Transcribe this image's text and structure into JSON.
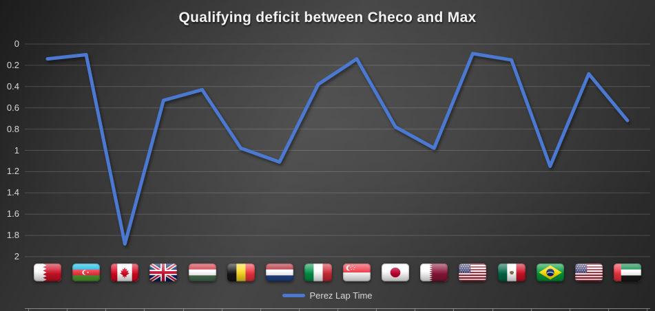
{
  "chart": {
    "title": "Qualifying deficit between Checo and Max",
    "colors": {
      "line": "#4B79D1",
      "title_text": "#F2F2F2",
      "axis_text": "#D9D9D9",
      "background_dark": "#262626",
      "background_mid": "#464646"
    }
  },
  "chart_data": {
    "type": "line",
    "title": "Qualifying deficit between Checo and Max",
    "xlabel": "",
    "ylabel": "",
    "grid": true,
    "legend_position": "bottom",
    "x_axis": {
      "label_type": "country-flag-icons"
    },
    "categories": [
      {
        "label": "Bahrain",
        "flag": "bahrain"
      },
      {
        "label": "Azerbaijan",
        "flag": "azerbaijan"
      },
      {
        "label": "Canada",
        "flag": "canada"
      },
      {
        "label": "Great Britain",
        "flag": "uk"
      },
      {
        "label": "Hungary",
        "flag": "hungary"
      },
      {
        "label": "Belgium",
        "flag": "belgium"
      },
      {
        "label": "Netherlands",
        "flag": "netherlands"
      },
      {
        "label": "Italy",
        "flag": "italy"
      },
      {
        "label": "Singapore",
        "flag": "singapore"
      },
      {
        "label": "Japan",
        "flag": "japan"
      },
      {
        "label": "Qatar",
        "flag": "qatar"
      },
      {
        "label": "United States",
        "flag": "usa"
      },
      {
        "label": "Mexico",
        "flag": "mexico"
      },
      {
        "label": "Brazil",
        "flag": "brazil"
      },
      {
        "label": "Las Vegas",
        "flag": "usa"
      },
      {
        "label": "Abu Dhabi",
        "flag": "uae"
      }
    ],
    "series": [
      {
        "name": "Perez Lap Time",
        "values": [
          0.14,
          0.1,
          1.88,
          0.53,
          0.43,
          0.98,
          1.11,
          0.38,
          0.14,
          0.78,
          0.98,
          0.09,
          0.15,
          1.15,
          0.28,
          0.72
        ]
      }
    ],
    "y_axis": {
      "min": 0,
      "max": 2,
      "step": 0.2,
      "inverted": true,
      "ticks": [
        "0",
        "0.2",
        "0.4",
        "0.6",
        "0.8",
        "1",
        "1.2",
        "1.4",
        "1.6",
        "1.8",
        "2"
      ]
    }
  }
}
